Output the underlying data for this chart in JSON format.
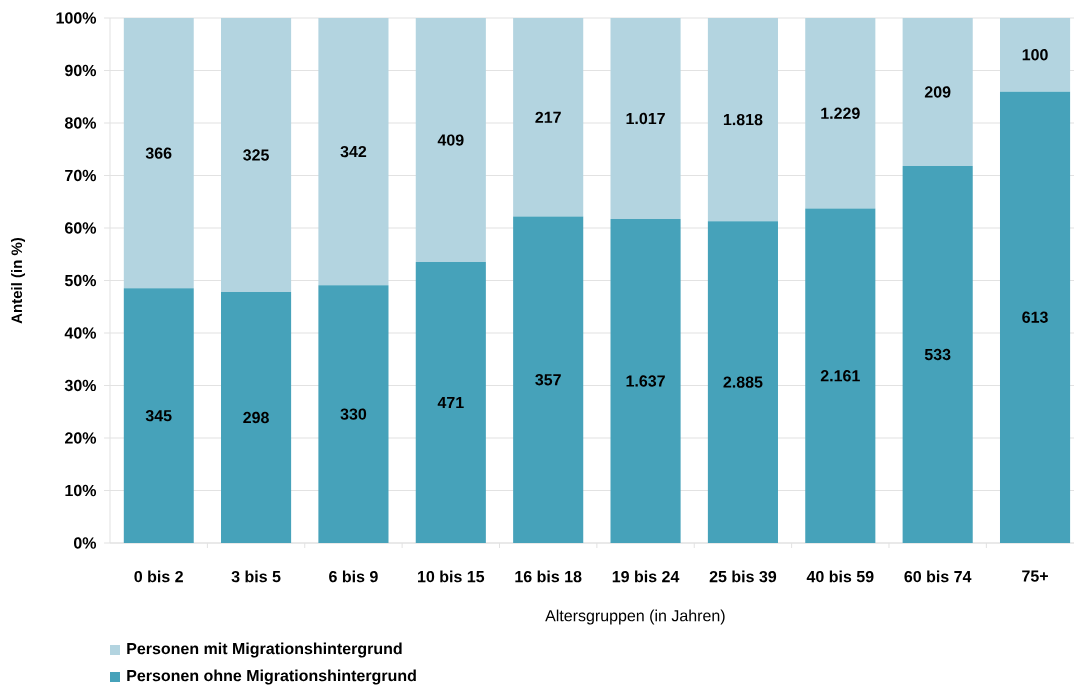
{
  "chart_data": {
    "type": "bar",
    "stacked": true,
    "categories": [
      "0 bis 2",
      "3 bis 5",
      "6 bis 9",
      "10 bis 15",
      "16 bis 18",
      "19 bis 24",
      "25 bis 39",
      "40 bis 59",
      "60 bis 74",
      "75+"
    ],
    "xlabel": "Altersgruppen (in Jahren)",
    "ylabel": "Anteil (in %)",
    "ylim": [
      0,
      100
    ],
    "yticks": [
      {
        "value": 0,
        "label": "0%"
      },
      {
        "value": 10,
        "label": "10%"
      },
      {
        "value": 20,
        "label": "20%"
      },
      {
        "value": 30,
        "label": "30%"
      },
      {
        "value": 40,
        "label": "40%"
      },
      {
        "value": 50,
        "label": "50%"
      },
      {
        "value": 60,
        "label": "60%"
      },
      {
        "value": 70,
        "label": "70%"
      },
      {
        "value": 80,
        "label": "80%"
      },
      {
        "value": 90,
        "label": "90%"
      },
      {
        "value": 100,
        "label": "100%"
      }
    ],
    "grid": "y",
    "legend": "bottom left",
    "series": [
      {
        "name": "Personen ohne Migrationshintergrund",
        "color": "#46a2ba",
        "values": [
          48.5,
          47.8,
          49.1,
          53.5,
          62.2,
          61.7,
          61.3,
          63.7,
          71.8,
          86.0
        ]
      },
      {
        "name": "Personen mit Migrationshintergrund",
        "color": "#b3d4e0",
        "values": [
          51.5,
          52.2,
          50.9,
          46.5,
          37.8,
          38.3,
          38.7,
          36.3,
          28.2,
          14.0
        ]
      }
    ],
    "annotations": [
      "345",
      "298",
      "330",
      "471",
      "357",
      "1.637",
      "2.885",
      "2.161",
      "533",
      "613",
      "366",
      "325",
      "342",
      "409",
      "217",
      "1.017",
      "1.818",
      "1.229",
      "209",
      "100"
    ]
  }
}
